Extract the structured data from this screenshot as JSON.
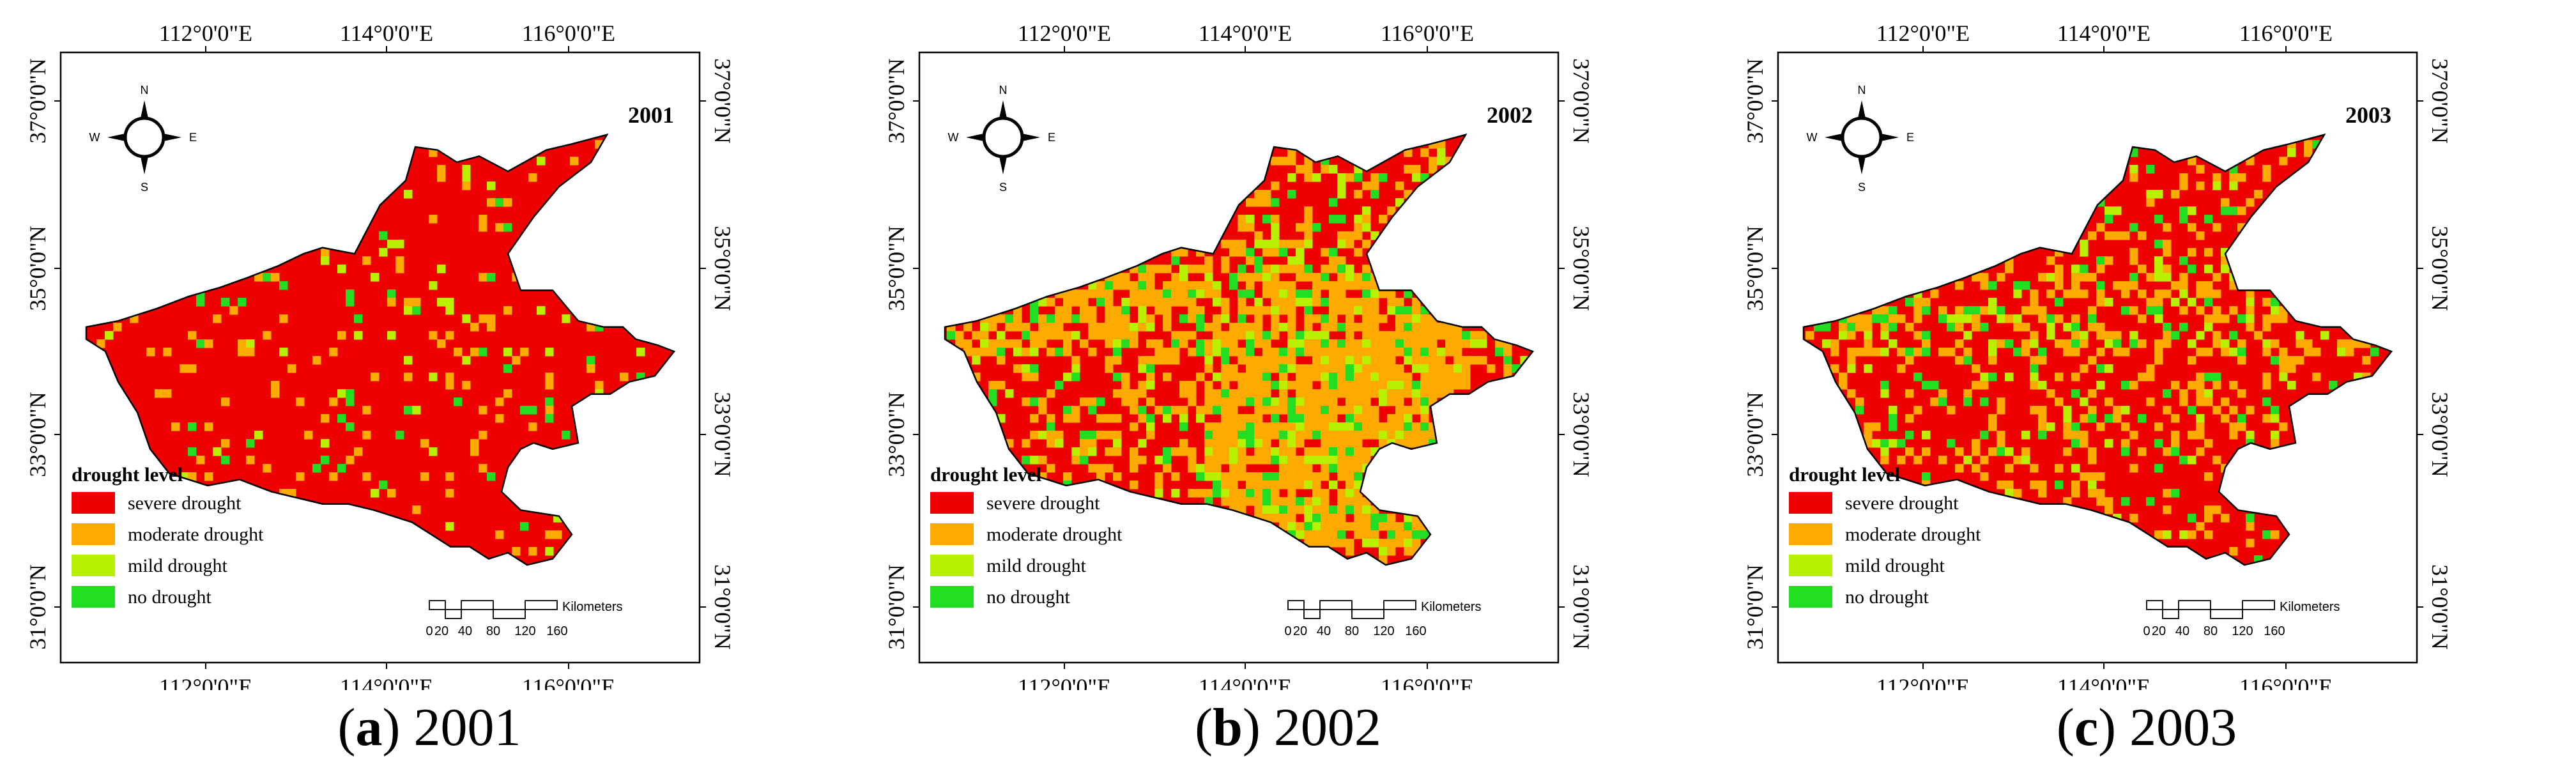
{
  "colors": {
    "severe": "#ee0000",
    "moderate": "#ffaa00",
    "mild": "#b8f000",
    "none": "#22dd22",
    "frame": "#000000"
  },
  "axes": {
    "top_labels": [
      "112°0'0\"E",
      "114°0'0\"E",
      "116°0'0\"E"
    ],
    "bottom_labels": [
      "112°0'0\"E",
      "114°0'0\"E",
      "116°0'0\"E"
    ],
    "left_labels": [
      "37°0'0\"N",
      "35°0'0\"N",
      "33°0'0\"N",
      "31°0'0\"N"
    ],
    "right_labels": [
      "37°0'0\"N",
      "35°0'0\"N",
      "33°0'0\"N",
      "31°0'0\"N"
    ]
  },
  "north_arrow": {
    "n": "N",
    "s": "S",
    "e": "E",
    "w": "W",
    "icon": "compass-icon"
  },
  "legend": {
    "title": "drought level",
    "items": [
      {
        "key": "severe",
        "label": "severe drought"
      },
      {
        "key": "moderate",
        "label": "moderate drought"
      },
      {
        "key": "mild",
        "label": "mild drought"
      },
      {
        "key": "none",
        "label": "no drought"
      }
    ]
  },
  "scalebar": {
    "ticks": [
      "0",
      "20",
      "40",
      "80",
      "120",
      "160"
    ],
    "unit": "Kilometers"
  },
  "panels": [
    {
      "year": "2001",
      "caption_letter": "a",
      "caption_year": "2001",
      "moderate_share": 0.05,
      "mild_share": 0.02,
      "none_share": 0.02,
      "seed": 11
    },
    {
      "year": "2002",
      "caption_letter": "b",
      "caption_year": "2002",
      "moderate_share": 0.3,
      "mild_share": 0.05,
      "none_share": 0.05,
      "seed": 23
    },
    {
      "year": "2003",
      "caption_letter": "c",
      "caption_year": "2003",
      "moderate_share": 0.18,
      "mild_share": 0.04,
      "none_share": 0.05,
      "seed": 37
    }
  ]
}
